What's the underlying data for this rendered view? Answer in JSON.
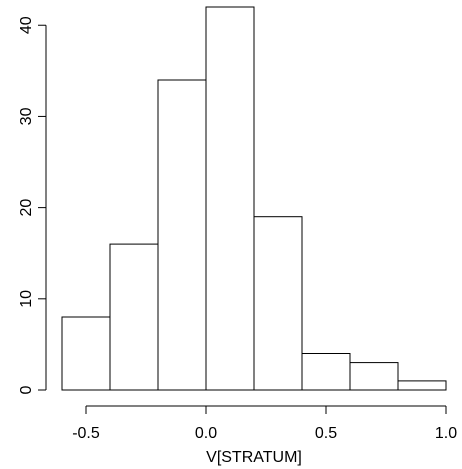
{
  "chart_data": {
    "type": "bar",
    "title": "",
    "xlabel": "V[STRATUM]",
    "ylabel": "",
    "bin_edges": [
      -0.6,
      -0.4,
      -0.2,
      0.0,
      0.2,
      0.4,
      0.6,
      0.8,
      1.0
    ],
    "values": [
      8,
      16,
      34,
      42,
      19,
      4,
      3,
      1
    ],
    "xlim": [
      -0.6,
      1.0
    ],
    "ylim": [
      0,
      42
    ],
    "x_ticks": [
      -0.5,
      0.0,
      0.5,
      1.0
    ],
    "x_tick_labels": [
      "-0.5",
      "0.0",
      "0.5",
      "1.0"
    ],
    "y_ticks": [
      0,
      10,
      20,
      30,
      40
    ],
    "y_tick_labels": [
      "0",
      "10",
      "20",
      "30",
      "40"
    ],
    "grid": false,
    "legend": "none",
    "bar_fill": "#ffffff",
    "bar_stroke": "#000000"
  }
}
